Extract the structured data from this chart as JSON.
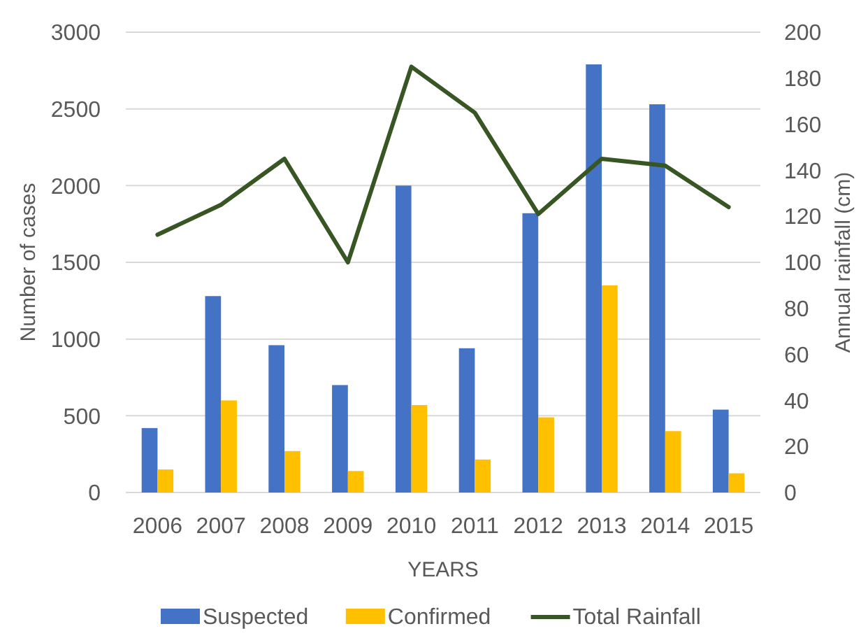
{
  "chart_data": {
    "type": "bar",
    "xlabel": "YEARS",
    "ylabel": "Number of cases",
    "y2label": "Annual rainfall (cm)",
    "categories": [
      "2006",
      "2007",
      "2008",
      "2009",
      "2010",
      "2011",
      "2012",
      "2013",
      "2014",
      "2015"
    ],
    "series": [
      {
        "name": "Suspected",
        "color": "#4472c4",
        "values": [
          420,
          1280,
          960,
          700,
          2000,
          940,
          1820,
          2790,
          2530,
          540
        ]
      },
      {
        "name": "Confirmed",
        "color": "#ffc000",
        "values": [
          150,
          600,
          270,
          140,
          570,
          215,
          490,
          1350,
          400,
          125
        ]
      },
      {
        "name": "Total Rainfall",
        "type": "line",
        "axis": "y2",
        "color": "#375623",
        "values": [
          112,
          125,
          145,
          100,
          185,
          165,
          121,
          145,
          142,
          124
        ]
      }
    ],
    "ylim": [
      0,
      3000
    ],
    "yticks": [
      0,
      500,
      1000,
      1500,
      2000,
      2500,
      3000
    ],
    "y2lim": [
      0,
      200
    ],
    "y2ticks": [
      0,
      20,
      40,
      60,
      80,
      100,
      120,
      140,
      160,
      180,
      200
    ],
    "grid": "y",
    "legend": "bottom",
    "marker": "none"
  }
}
